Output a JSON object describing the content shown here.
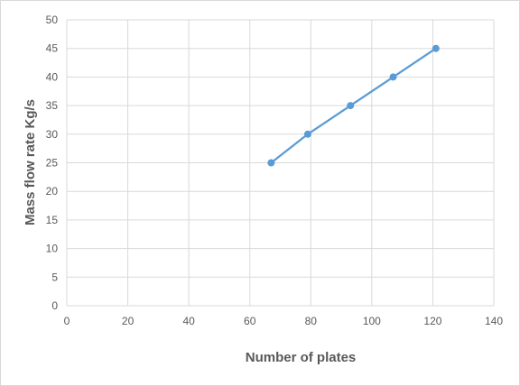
{
  "chart_data": {
    "type": "scatter",
    "title": "",
    "xlabel": "Number of plates",
    "ylabel": "Mass flow rate Kg/s",
    "xlim": [
      0,
      140
    ],
    "ylim": [
      0,
      50
    ],
    "x_ticks": [
      0,
      20,
      40,
      60,
      80,
      100,
      120,
      140
    ],
    "y_ticks": [
      0,
      5,
      10,
      15,
      20,
      25,
      30,
      35,
      40,
      45,
      50
    ],
    "grid": true,
    "legend": "none",
    "series": [
      {
        "x": [
          67,
          79,
          93,
          107,
          121
        ],
        "y": [
          25,
          30,
          35,
          40,
          45
        ],
        "color": "#5b9bd5",
        "style": "line-with-markers"
      }
    ]
  }
}
